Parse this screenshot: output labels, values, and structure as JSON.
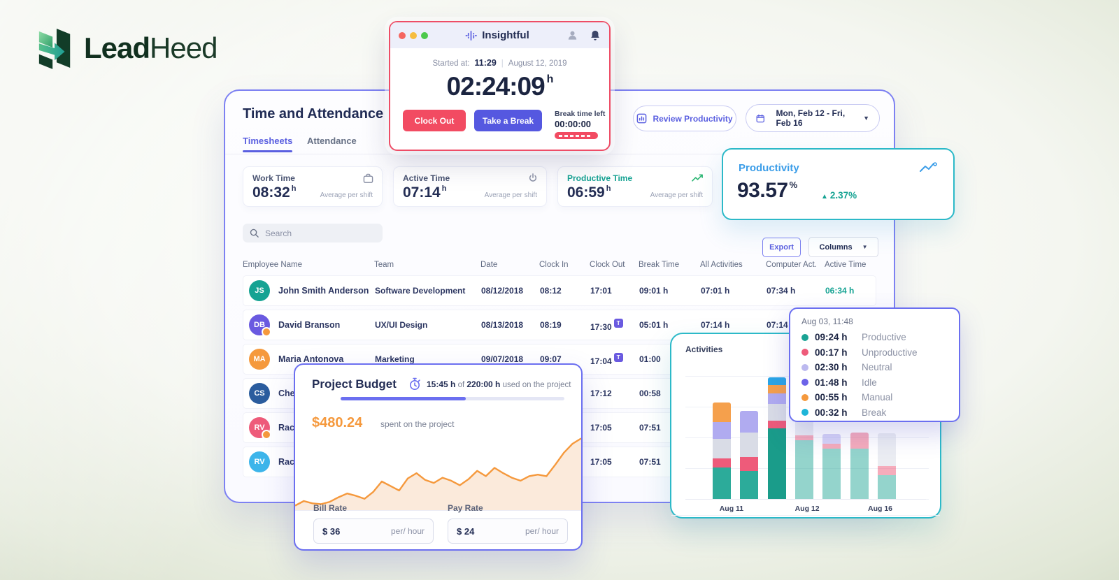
{
  "logo": {
    "lead": "Lead",
    "heed": "Heed"
  },
  "timer": {
    "app_title": "Insightful",
    "started_label": "Started at:",
    "started_time": "11:29",
    "started_date": "August 12, 2019",
    "elapsed": "02:24:09",
    "elapsed_unit": "h",
    "clock_out_label": "Clock Out",
    "take_break_label": "Take a Break",
    "break_left_label": "Break time left",
    "break_left_value": "00:00:00"
  },
  "dashboard": {
    "title": "Time and Attendance",
    "tabs": [
      {
        "label": "Timesheets"
      },
      {
        "label": "Attendance"
      }
    ],
    "review_button": "Review Productivity",
    "date_range": "Mon, Feb 12 - Fri, Feb 16",
    "stats": [
      {
        "label": "Work Time",
        "value": "08:32",
        "unit": "h",
        "note": "Average per shift",
        "icon": "briefcase-icon"
      },
      {
        "label": "Active Time",
        "value": "07:14",
        "unit": "h",
        "note": "Average per shift",
        "icon": "power-icon"
      },
      {
        "label": "Productive Time",
        "value": "06:59",
        "unit": "h",
        "note": "Average per shift",
        "icon": "trend-up-icon"
      }
    ],
    "search_placeholder": "Search",
    "export_label": "Export",
    "columns_label": "Columns",
    "table": {
      "headers": [
        "Employee Name",
        "Team",
        "Date",
        "Clock In",
        "Clock Out",
        "Break Time",
        "All Activities",
        "Computer Act.",
        "Active Time"
      ],
      "badge": "T",
      "rows": [
        {
          "initials": "JS",
          "avatar_color": "#16a393",
          "dot": false,
          "name": "John Smith Anderson",
          "team": "Software Development",
          "date": "08/12/2018",
          "clock_in": "08:12",
          "clock_out": "17:01",
          "clock_out_badge": false,
          "break_time": "09:01 h",
          "all_activities": "07:01 h",
          "computer_act": "07:34 h",
          "active_time": "06:34 h",
          "active_time_accent": true
        },
        {
          "initials": "DB",
          "avatar_color": "#6a5ae0",
          "dot": true,
          "name": "David Branson",
          "team": "UX/UI Design",
          "date": "08/13/2018",
          "clock_in": "08:19",
          "clock_out": "17:30",
          "clock_out_badge": true,
          "break_time": "05:01 h",
          "all_activities": "07:14 h",
          "computer_act": "07:14 h",
          "active_time": "",
          "active_time_accent": false
        },
        {
          "initials": "MA",
          "avatar_color": "#f5993d",
          "dot": false,
          "name": "Maria Antonova",
          "team": "Marketing",
          "date": "09/07/2018",
          "clock_in": "09:07",
          "clock_out": "17:04",
          "clock_out_badge": true,
          "break_time": "01:00",
          "all_activities": "",
          "computer_act": "",
          "active_time": "",
          "active_time_accent": false
        },
        {
          "initials": "CS",
          "avatar_color": "#2b5d9e",
          "dot": false,
          "name": "Chen",
          "team": "",
          "date": "",
          "clock_in": "",
          "clock_out": "17:12",
          "clock_out_badge": false,
          "break_time": "00:58",
          "all_activities": "",
          "computer_act": "",
          "active_time": "",
          "active_time_accent": false
        },
        {
          "initials": "RV",
          "avatar_color": "#ee5b7a",
          "dot": true,
          "name": "Rache",
          "team": "",
          "date": "",
          "clock_in": "",
          "clock_out": "17:05",
          "clock_out_badge": false,
          "break_time": "07:51",
          "all_activities": "",
          "computer_act": "",
          "active_time": "",
          "active_time_accent": false
        },
        {
          "initials": "RV",
          "avatar_color": "#3db5ea",
          "dot": false,
          "name": "Rache",
          "team": "",
          "date": "",
          "clock_in": "",
          "clock_out": "17:05",
          "clock_out_badge": false,
          "break_time": "07:51",
          "all_activities": "",
          "computer_act": "",
          "active_time": "",
          "active_time_accent": false
        }
      ]
    }
  },
  "productivity": {
    "title": "Productivity",
    "value": "93.57",
    "unit": "%",
    "delta": "2.37%",
    "delta_direction": "up"
  },
  "project_budget": {
    "title": "Project Budget",
    "used_hours": "15:45 h",
    "of_label": "of",
    "total_hours": "220:00 h",
    "used_suffix": "used on the project",
    "progress_pct": 56,
    "spent": "$480.24",
    "spent_note": "spent on the project",
    "bill_rate_label": "Bill Rate",
    "bill_rate_value": "$ 36",
    "bill_rate_suffix": "per/ hour",
    "pay_rate_label": "Pay Rate",
    "pay_rate_value": "$ 24",
    "pay_rate_suffix": "per/ hour",
    "chart_data": {
      "type": "area",
      "line_color": "#f5993d",
      "fill_color": "#fbeadb",
      "y_pct": [
        6,
        12,
        9,
        8,
        11,
        17,
        22,
        19,
        15,
        24,
        38,
        32,
        26,
        42,
        49,
        40,
        36,
        43,
        39,
        33,
        41,
        52,
        45,
        56,
        49,
        43,
        39,
        45,
        47,
        45,
        60,
        76,
        88,
        95
      ]
    }
  },
  "activities": {
    "title": "Activities",
    "chart_data": {
      "type": "bar",
      "stacked": true,
      "unit": "hours",
      "ylim": [
        0,
        10
      ],
      "segment_order": [
        "productive",
        "unproductive",
        "neutral",
        "idle",
        "manual",
        "break"
      ],
      "segment_colors": {
        "productive": "#2cab9a",
        "unproductive": "#ee5b7a",
        "neutral": "#d9dce6",
        "idle": "#b0abf0",
        "manual": "#f5a04c",
        "break": "#2aa5e6"
      },
      "bars": [
        {
          "values": [
            2.6,
            0.8,
            1.6,
            1.4,
            1.6,
            0
          ],
          "faded": false,
          "dark": false
        },
        {
          "values": [
            2.3,
            1.2,
            2.0,
            1.8,
            0,
            0
          ],
          "faded": false,
          "dark": false
        },
        {
          "values": [
            5.9,
            0.6,
            1.4,
            0.9,
            0.7,
            0.6
          ],
          "faded": false,
          "dark": true
        },
        {
          "values": [
            4.9,
            0.4,
            2.1,
            0,
            0,
            0
          ],
          "faded": true,
          "dark": false
        },
        {
          "values": [
            4.2,
            0.4,
            0,
            0.8,
            0,
            0
          ],
          "faded": true,
          "dark": false
        },
        {
          "values": [
            4.2,
            1.3,
            0,
            0,
            0,
            0
          ],
          "faded": true,
          "dark": false
        },
        {
          "values": [
            2.0,
            0.75,
            2.7,
            0,
            0,
            0
          ],
          "faded": true,
          "dark": false
        }
      ],
      "x_labels": [
        {
          "label": "Aug 11",
          "x_pct": 14
        },
        {
          "label": "Aug 12",
          "x_pct": 45
        },
        {
          "label": "Aug 16",
          "x_pct": 75
        }
      ]
    }
  },
  "tooltip": {
    "date": "Aug 03, 11:48",
    "items": [
      {
        "time": "09:24 h",
        "label": "Productive",
        "color": "#1aa394"
      },
      {
        "time": "00:17 h",
        "label": "Unproductive",
        "color": "#ee5b7a"
      },
      {
        "time": "02:30 h",
        "label": "Neutral",
        "color": "#bcb9ef"
      },
      {
        "time": "01:48 h",
        "label": "Idle",
        "color": "#6c63e8"
      },
      {
        "time": "00:55 h",
        "label": "Manual",
        "color": "#f5993d"
      },
      {
        "time": "00:32 h",
        "label": "Break",
        "color": "#1fb5d8"
      }
    ]
  }
}
